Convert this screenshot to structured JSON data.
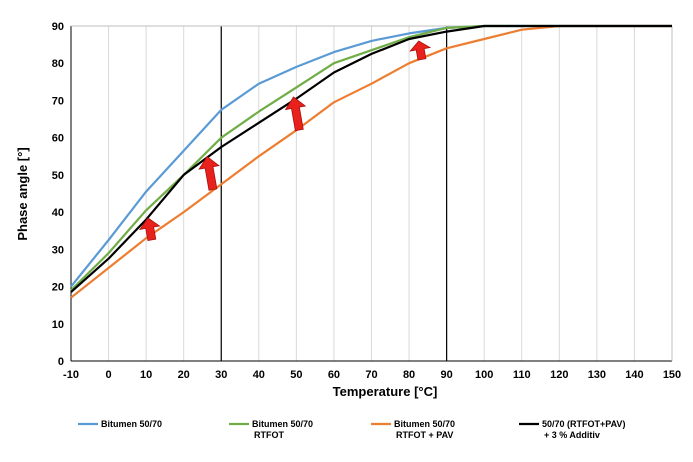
{
  "chart_data": {
    "type": "line",
    "xlabel": "Temperature [°C]",
    "ylabel": "Phase angle [°]",
    "xlim": [
      -10,
      150
    ],
    "ylim": [
      0,
      90
    ],
    "x_ticks": [
      -10,
      0,
      10,
      20,
      30,
      40,
      50,
      60,
      70,
      80,
      90,
      100,
      110,
      120,
      130,
      140,
      150
    ],
    "y_ticks": [
      0,
      10,
      20,
      30,
      40,
      50,
      60,
      70,
      80,
      90
    ],
    "grid": "vertical",
    "reference_lines_x": [
      30,
      90
    ],
    "legend_position": "bottom",
    "series": [
      {
        "name": "Bitumen 50/70",
        "color": "#5b9bd5",
        "x": [
          -10,
          0,
          10,
          20,
          30,
          40,
          50,
          60,
          70,
          80,
          90,
          100,
          110,
          120,
          130,
          140,
          150
        ],
        "y": [
          20,
          32.5,
          45.5,
          56.5,
          67.5,
          74.5,
          79,
          83,
          86,
          88,
          89.5,
          90,
          90,
          90,
          90,
          90,
          90
        ]
      },
      {
        "name": "Bitumen 50/70 RTFOT",
        "name_lines": [
          "Bitumen 50/70",
          "RTFOT"
        ],
        "color": "#70ad47",
        "x": [
          -10,
          0,
          10,
          20,
          30,
          40,
          50,
          60,
          70,
          80,
          90,
          100,
          110,
          120,
          130,
          140,
          150
        ],
        "y": [
          19,
          29,
          40.5,
          50,
          60,
          67,
          73.5,
          80,
          83.5,
          87,
          89.5,
          90,
          90,
          90,
          90,
          90,
          90
        ]
      },
      {
        "name": "Bitumen 50/70 RTFOT + PAV",
        "name_lines": [
          "Bitumen 50/70",
          "RTFOT + PAV"
        ],
        "color": "#ed7d31",
        "x": [
          -10,
          0,
          10,
          20,
          30,
          40,
          50,
          60,
          70,
          80,
          90,
          100,
          110,
          120,
          130,
          140,
          150
        ],
        "y": [
          17,
          25,
          33,
          40,
          47.5,
          55,
          62,
          69.5,
          74.5,
          80,
          84,
          86.5,
          89,
          90,
          90,
          90,
          90
        ]
      },
      {
        "name": "50/70 (RTFOT+PAV) + 3 % Additiv",
        "name_lines": [
          "50/70 (RTFOT+PAV)",
          "+ 3 % Additiv"
        ],
        "color": "#000000",
        "x": [
          -10,
          0,
          10,
          20,
          30,
          40,
          50,
          60,
          70,
          80,
          90,
          100,
          110,
          120,
          130,
          140,
          150
        ],
        "y": [
          18.5,
          27.5,
          38,
          50,
          57.5,
          64,
          70.5,
          77.5,
          82.5,
          86.5,
          88.5,
          90,
          90,
          90,
          90,
          90,
          90
        ]
      }
    ],
    "arrows": [
      {
        "x": 11,
        "y_from": 32.5,
        "y_to": 38.5
      },
      {
        "x": 27,
        "y_from": 46,
        "y_to": 55
      },
      {
        "x": 50,
        "y_from": 62,
        "y_to": 71
      },
      {
        "x": 83,
        "y_from": 81,
        "y_to": 86
      }
    ],
    "arrow_color": "#e8211d"
  }
}
